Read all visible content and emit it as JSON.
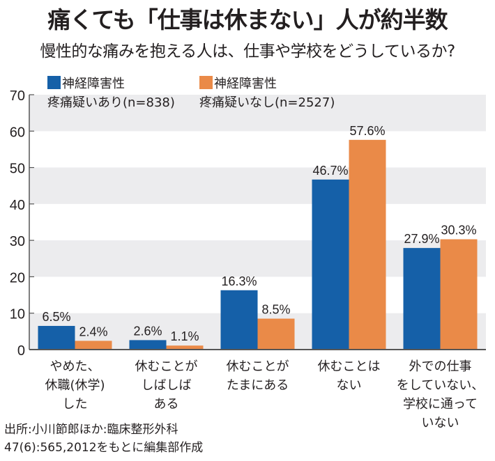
{
  "title": "痛くても「仕事は休まない」人が約半数",
  "subtitle": "慢性的な痛みを抱える人は、仕事や学校をどうしているか?",
  "colors": {
    "series1": "#1560a8",
    "series2": "#ea8a48",
    "band": "#ececee",
    "axis": "#555555"
  },
  "chart_data": {
    "type": "bar",
    "title": "痛くても「仕事は休まない」人が約半数",
    "subtitle": "慢性的な痛みを抱える人は、仕事や学校をどうしているか?",
    "ylim": [
      0,
      70
    ],
    "yticks": [
      "0",
      "10",
      "20",
      "30",
      "40",
      "50",
      "60",
      "70"
    ],
    "grid": "alternating horizontal bands",
    "legend_position": "top-left",
    "categories": [
      [
        "やめた、",
        "休職(休学)",
        "した"
      ],
      [
        "休むことが",
        "しばしば",
        "ある"
      ],
      [
        "休むことが",
        "たまにある"
      ],
      [
        "休むことは",
        "ない"
      ],
      [
        "外での仕事",
        "をしていない、",
        "学校に通って",
        "いない"
      ]
    ],
    "series": [
      {
        "name_line1": "神経障害性",
        "name_line2": "疼痛疑いあり(n=838)",
        "values": [
          6.5,
          2.6,
          16.3,
          46.7,
          27.9
        ],
        "labels": [
          "6.5%",
          "2.6%",
          "16.3%",
          "46.7%",
          "27.9%"
        ]
      },
      {
        "name_line1": "神経障害性",
        "name_line2": "疼痛疑いなし(n=2527)",
        "values": [
          2.4,
          1.1,
          8.5,
          57.6,
          30.3
        ],
        "labels": [
          "2.4%",
          "1.1%",
          "8.5%",
          "57.6%",
          "30.3%"
        ]
      }
    ]
  },
  "source": {
    "line1": "出所:小川節郎ほか:臨床整形外科",
    "line2": "47(6):565,2012をもとに編集部作成"
  }
}
